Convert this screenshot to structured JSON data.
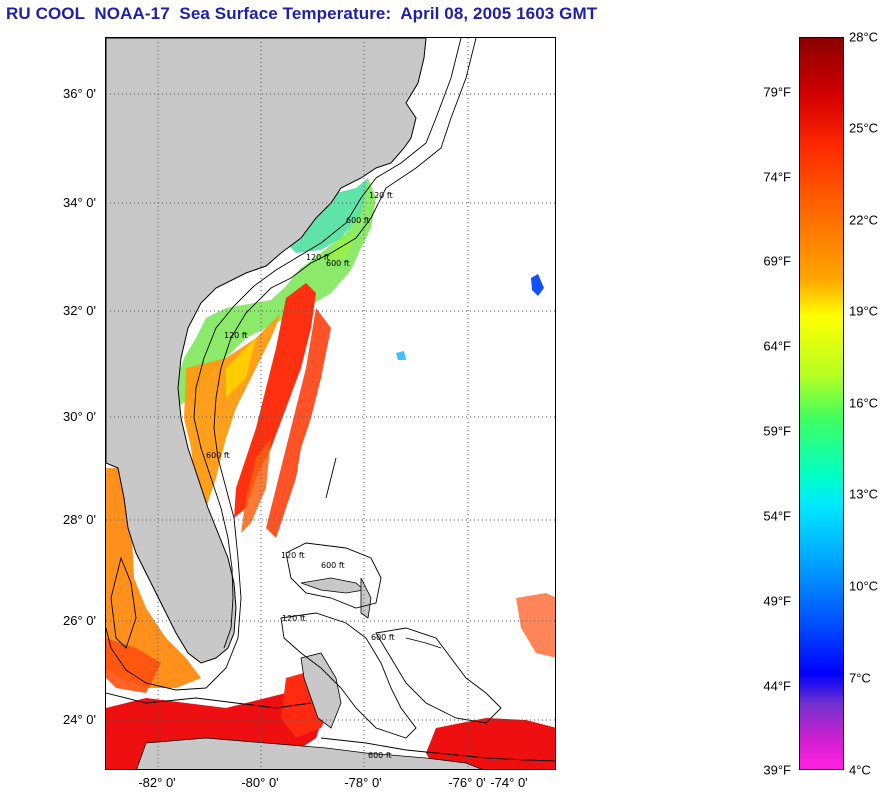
{
  "title": "RU COOL  NOAA-17  Sea Surface Temperature:  April 08, 2005 1603 GMT",
  "map": {
    "latitude_labels": [
      "36° 0'",
      "34° 0'",
      "32° 0'",
      "30° 0'",
      "28° 0'",
      "26° 0'",
      "24° 0'"
    ],
    "longitude_labels": [
      "-82° 0'",
      "-80° 0'",
      "-78° 0'",
      "-76° 0'",
      "-74° 0'"
    ],
    "isobath_labels": [
      "120 ft",
      "600 ft",
      "120 ft",
      "600 ft",
      "120 ft",
      "600 ft",
      "120 ft",
      "600 ft",
      "120 ft",
      "600 ft",
      "600 ft"
    ],
    "colors": {
      "land": "#c8c8c8",
      "ocean": "#ffffff",
      "grid": "#555555"
    }
  },
  "colorbar": {
    "fahrenheit": [
      "79°F",
      "74°F",
      "69°F",
      "64°F",
      "59°F",
      "54°F",
      "49°F",
      "44°F",
      "39°F"
    ],
    "celsius": [
      "28°C",
      "25°C",
      "22°C",
      "19°C",
      "16°C",
      "13°C",
      "10°C",
      "7°C",
      "4°C"
    ]
  }
}
